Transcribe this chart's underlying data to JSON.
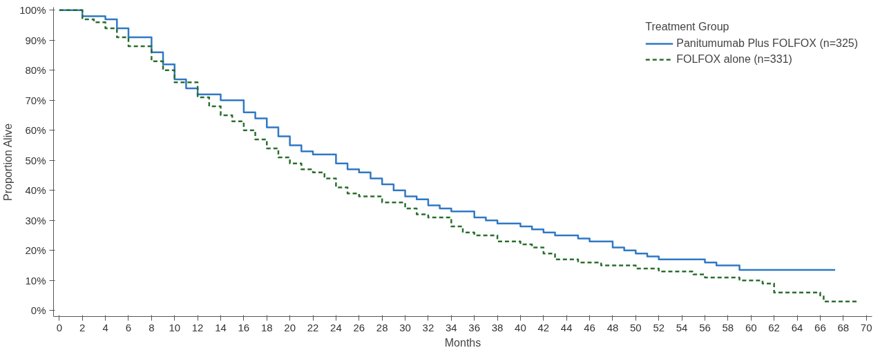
{
  "chart_data": {
    "type": "step",
    "xlabel": "Months",
    "ylabel": "Proportion Alive",
    "legend_title": "Treatment Group",
    "legend": "top right",
    "grid": false,
    "xlim": [
      -0.5,
      70.5
    ],
    "ylim": [
      -2,
      101
    ],
    "xticks": [
      0,
      2,
      4,
      6,
      8,
      10,
      12,
      14,
      16,
      18,
      20,
      22,
      24,
      26,
      28,
      30,
      32,
      34,
      36,
      38,
      40,
      42,
      44,
      46,
      48,
      50,
      52,
      54,
      56,
      58,
      60,
      62,
      64,
      66,
      68,
      70
    ],
    "yticks": [
      {
        "value": 0,
        "label": "0%"
      },
      {
        "value": 10,
        "label": "10%"
      },
      {
        "value": 20,
        "label": "20%"
      },
      {
        "value": 30,
        "label": "30%"
      },
      {
        "value": 40,
        "label": "40%"
      },
      {
        "value": 50,
        "label": "50%"
      },
      {
        "value": 60,
        "label": "60%"
      },
      {
        "value": 70,
        "label": "70%"
      },
      {
        "value": 80,
        "label": "80%"
      },
      {
        "value": 90,
        "label": "90%"
      },
      {
        "value": 100,
        "label": "100%"
      }
    ],
    "series": [
      {
        "name": "Panitumumab Plus FOLFOX (n=325)",
        "color": "#2f78c4",
        "line_style": "solid",
        "x": [
          0,
          2,
          4,
          5,
          6,
          8,
          9,
          10,
          11,
          12,
          14,
          16,
          17,
          18,
          19,
          20,
          21,
          22,
          24,
          25,
          26,
          27,
          28,
          29,
          30,
          31,
          32,
          33,
          34,
          36,
          37,
          38,
          40,
          41,
          42,
          43,
          45,
          46,
          48,
          49,
          50,
          51,
          52,
          56,
          57,
          59,
          67.3
        ],
        "values": [
          100,
          98,
          97,
          94,
          91,
          86,
          82,
          77,
          74,
          72,
          70,
          66,
          64,
          61,
          58,
          55,
          53,
          52,
          49,
          47,
          46,
          44,
          42,
          40,
          38,
          37,
          35,
          34,
          33,
          31,
          30,
          29,
          28,
          27,
          26,
          25,
          24,
          23,
          21,
          20,
          19,
          18,
          17,
          16,
          15,
          13.5,
          13.5
        ]
      },
      {
        "name": "FOLFOX alone (n=331)",
        "color": "#2a6e2e",
        "line_style": "dashed",
        "x": [
          0,
          2,
          3,
          4,
          5,
          6,
          8,
          9,
          10,
          12,
          13,
          14,
          15,
          16,
          17,
          18,
          19,
          20,
          21,
          22,
          23,
          24,
          25,
          26,
          28,
          30,
          31,
          32,
          34,
          35,
          36,
          38,
          40,
          41,
          42,
          43,
          45,
          47,
          50,
          52,
          55,
          56,
          59,
          61,
          62,
          66,
          66.3,
          69.2
        ],
        "values": [
          100,
          97,
          96,
          94,
          91,
          88,
          83,
          80,
          76,
          71,
          68,
          65,
          63,
          60,
          57,
          54,
          51,
          49,
          47,
          46,
          44,
          41,
          39,
          38,
          36,
          34,
          32,
          31,
          28,
          26,
          25,
          23,
          22,
          21,
          19,
          17,
          16,
          15,
          14,
          13,
          12,
          11,
          10,
          9,
          6,
          5,
          3,
          3
        ]
      }
    ]
  }
}
